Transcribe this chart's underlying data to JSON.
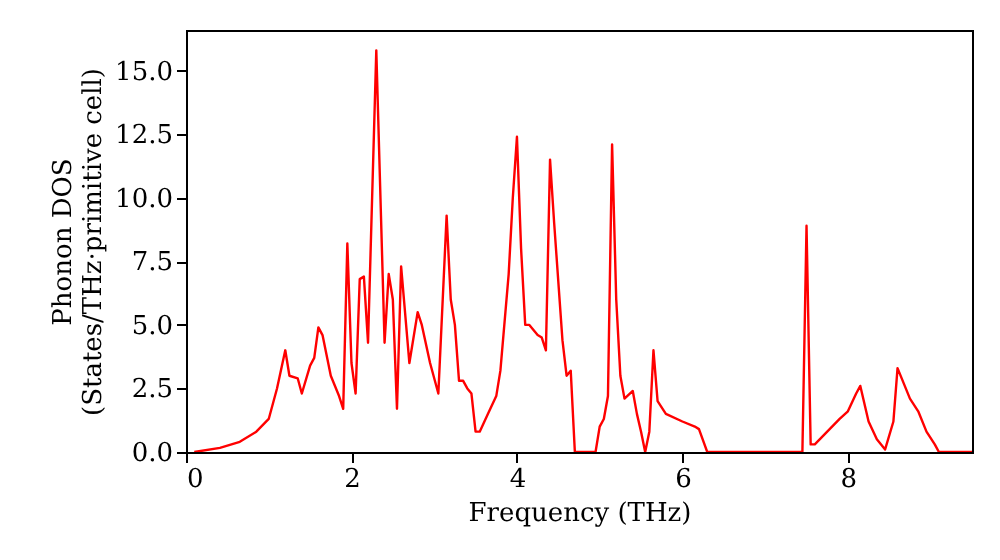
{
  "chart_data": {
    "type": "line",
    "xlabel": "Frequency (THz)",
    "ylabel": "Phonon DOS\n(States/THz·primitive cell)",
    "x": [
      0.1,
      0.41,
      0.65,
      0.85,
      1.0,
      1.1,
      1.2,
      1.25,
      1.35,
      1.4,
      1.5,
      1.55,
      1.6,
      1.65,
      1.75,
      1.85,
      1.9,
      1.95,
      2.0,
      2.05,
      2.1,
      2.15,
      2.2,
      2.3,
      2.4,
      2.45,
      2.5,
      2.55,
      2.6,
      2.7,
      2.8,
      2.85,
      2.95,
      3.05,
      3.15,
      3.2,
      3.25,
      3.3,
      3.35,
      3.4,
      3.45,
      3.5,
      3.55,
      3.65,
      3.75,
      3.8,
      3.9,
      3.95,
      4.0,
      4.05,
      4.1,
      4.15,
      4.25,
      4.3,
      4.35,
      4.4,
      4.45,
      4.55,
      4.6,
      4.65,
      4.7,
      4.95,
      5.0,
      5.05,
      5.1,
      5.15,
      5.2,
      5.25,
      5.3,
      5.4,
      5.45,
      5.5,
      5.55,
      5.6,
      5.65,
      5.7,
      5.8,
      6.0,
      6.15,
      6.2,
      6.3,
      7.45,
      7.5,
      7.55,
      7.6,
      7.75,
      7.9,
      8.0,
      8.1,
      8.15,
      8.25,
      8.35,
      8.45,
      8.55,
      8.6,
      8.75,
      8.85,
      8.95,
      9.05,
      9.1,
      9.5
    ],
    "series": [
      {
        "color": "#ff0000",
        "values": [
          0,
          0.16,
          0.4,
          0.8,
          1.3,
          2.5,
          4.0,
          3.0,
          2.9,
          2.3,
          3.4,
          3.7,
          4.9,
          4.6,
          3.0,
          2.2,
          1.7,
          8.2,
          3.5,
          2.3,
          6.8,
          6.9,
          4.3,
          15.8,
          4.3,
          7.0,
          6.0,
          1.7,
          7.3,
          3.5,
          5.5,
          5.0,
          3.5,
          2.3,
          9.3,
          6.0,
          5.0,
          2.8,
          2.8,
          2.5,
          2.3,
          0.8,
          0.8,
          1.5,
          2.2,
          3.2,
          7.0,
          10.0,
          12.4,
          8.0,
          5.0,
          5.0,
          4.6,
          4.5,
          4.0,
          11.5,
          9.0,
          4.4,
          3.0,
          3.2,
          0,
          0,
          1.0,
          1.3,
          2.2,
          12.1,
          6.0,
          3.0,
          2.1,
          2.4,
          1.5,
          0.8,
          0,
          0.8,
          4.0,
          2.0,
          1.5,
          1.2,
          1.0,
          0.9,
          0,
          0,
          8.9,
          0.3,
          0.3,
          0.8,
          1.3,
          1.6,
          2.3,
          2.6,
          1.2,
          0.5,
          0.1,
          1.2,
          3.3,
          2.1,
          1.6,
          0.8,
          0.3,
          0,
          0
        ]
      }
    ],
    "xlim": [
      0,
      9.5
    ],
    "ylim": [
      0,
      16.6
    ],
    "xticks": [
      0,
      2,
      4,
      6,
      8
    ],
    "yticks": [
      {
        "value": 0,
        "label": "0.0"
      },
      {
        "value": 2.5,
        "label": "2.5"
      },
      {
        "value": 5,
        "label": "5.0"
      },
      {
        "value": 7.5,
        "label": "7.5"
      },
      {
        "value": 10,
        "label": "10.0"
      },
      {
        "value": 12.5,
        "label": "12.5"
      },
      {
        "value": 15,
        "label": "15.0"
      }
    ],
    "grid": false
  }
}
